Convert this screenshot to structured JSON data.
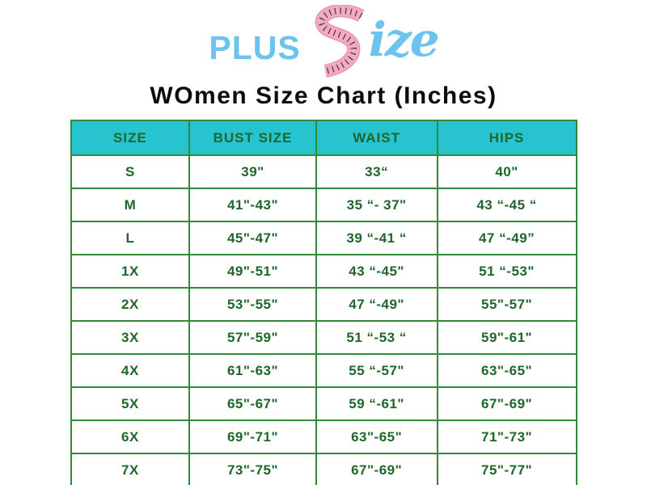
{
  "logo": {
    "plus_text": "PLUS",
    "size_tail_text": "ize",
    "blue": "#6cc4ee",
    "tape_pink": "#f4a9c3",
    "tape_pink_dark": "#e890b2",
    "tape_tick_color": "#3a3a3a"
  },
  "title": "WOmen Size Chart (Inches)",
  "table": {
    "header_bg": "#27c3cf",
    "text_color": "#1f662a",
    "border_color": "#2f8b3a",
    "headers": [
      "SIZE",
      "BUST SIZE",
      "WAIST",
      "HIPS"
    ],
    "rows": [
      [
        "S",
        "39\"",
        "33“",
        "40\""
      ],
      [
        "M",
        "41\"-43\"",
        "35 “- 37\"",
        "43 “-45 “"
      ],
      [
        "L",
        "45\"-47\"",
        "39 “-41 “",
        "47 “-49”"
      ],
      [
        "1X",
        "49\"-51\"",
        "43 “-45\"",
        "51 “-53\""
      ],
      [
        "2X",
        "53\"-55\"",
        "47 “-49\"",
        "55\"-57\""
      ],
      [
        "3X",
        "57\"-59\"",
        "51 “-53 “",
        "59\"-61\""
      ],
      [
        "4X",
        "61\"-63\"",
        "55 “-57\"",
        "63\"-65\""
      ],
      [
        "5X",
        "65\"-67\"",
        "59 “-61\"",
        "67\"-69\""
      ],
      [
        "6X",
        "69\"-71\"",
        "63\"-65\"",
        "71\"-73\""
      ],
      [
        "7X",
        "73\"-75\"",
        "67\"-69\"",
        "75\"-77\""
      ]
    ]
  },
  "chart_data": {
    "type": "table",
    "title": "WOmen Size Chart (Inches)",
    "columns": [
      "SIZE",
      "BUST SIZE",
      "WAIST",
      "HIPS"
    ],
    "rows": [
      [
        "S",
        "39\"",
        "33“",
        "40\""
      ],
      [
        "M",
        "41\"-43\"",
        "35 “- 37\"",
        "43 “-45 “"
      ],
      [
        "L",
        "45\"-47\"",
        "39 “-41 “",
        "47 “-49”"
      ],
      [
        "1X",
        "49\"-51\"",
        "43 “-45\"",
        "51 “-53\""
      ],
      [
        "2X",
        "53\"-55\"",
        "47 “-49\"",
        "55\"-57\""
      ],
      [
        "3X",
        "57\"-59\"",
        "51 “-53 “",
        "59\"-61\""
      ],
      [
        "4X",
        "61\"-63\"",
        "55 “-57\"",
        "63\"-65\""
      ],
      [
        "5X",
        "65\"-67\"",
        "59 “-61\"",
        "67\"-69\""
      ],
      [
        "6X",
        "69\"-71\"",
        "63\"-65\"",
        "71\"-73\""
      ],
      [
        "7X",
        "73\"-75\"",
        "67\"-69\"",
        "75\"-77\""
      ]
    ]
  }
}
